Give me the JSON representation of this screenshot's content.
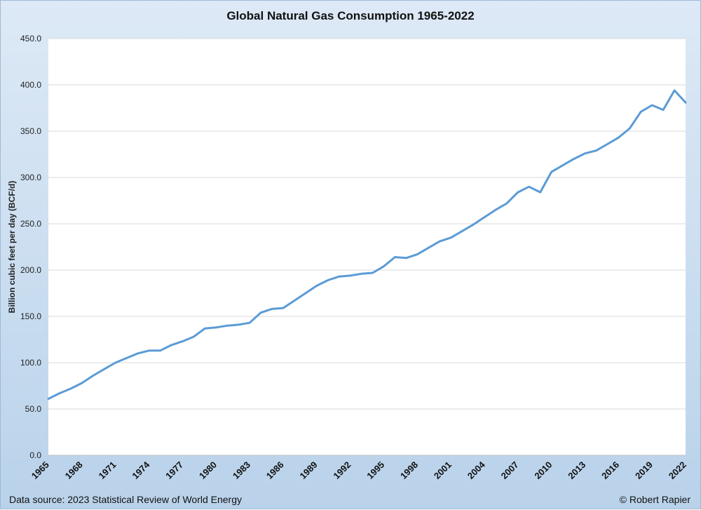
{
  "chart_data": {
    "type": "line",
    "title": "Global Natural Gas Consumption 1965-2022",
    "xlabel": "",
    "ylabel": "Billion cubic feet per day (BCF/d)",
    "ylim": [
      0,
      450
    ],
    "yticks": [
      "0.0",
      "50.0",
      "100.0",
      "150.0",
      "200.0",
      "250.0",
      "300.0",
      "350.0",
      "400.0",
      "450.0"
    ],
    "xticks": [
      "1965",
      "1968",
      "1971",
      "1974",
      "1977",
      "1980",
      "1983",
      "1986",
      "1989",
      "1992",
      "1995",
      "1998",
      "2001",
      "2004",
      "2007",
      "2010",
      "2013",
      "2016",
      "2019",
      "2022"
    ],
    "grid": true,
    "line_color": "#5b9bd5",
    "series": [
      {
        "name": "",
        "x": [
          1965,
          1966,
          1967,
          1968,
          1969,
          1970,
          1971,
          1972,
          1973,
          1974,
          1975,
          1976,
          1977,
          1978,
          1979,
          1980,
          1981,
          1982,
          1983,
          1984,
          1985,
          1986,
          1987,
          1988,
          1989,
          1990,
          1991,
          1992,
          1993,
          1994,
          1995,
          1996,
          1997,
          1998,
          1999,
          2000,
          2001,
          2002,
          2003,
          2004,
          2005,
          2006,
          2007,
          2008,
          2009,
          2010,
          2011,
          2012,
          2013,
          2014,
          2015,
          2016,
          2017,
          2018,
          2019,
          2020,
          2021,
          2022
        ],
        "values": [
          61,
          67,
          72,
          78,
          86,
          93,
          100,
          105,
          110,
          113,
          113,
          119,
          123,
          128,
          137,
          138,
          140,
          141,
          143,
          154,
          158,
          159,
          167,
          175,
          183,
          189,
          193,
          194,
          196,
          197,
          204,
          214,
          213,
          217,
          224,
          231,
          235,
          242,
          249,
          257,
          265,
          272,
          284,
          290,
          284,
          306,
          313,
          320,
          326,
          329,
          336,
          343,
          353,
          371,
          378,
          373,
          394,
          381
        ]
      }
    ]
  },
  "footer": {
    "source": "Data source: 2023 Statistical Review of World Energy",
    "credit": "© Robert Rapier"
  }
}
